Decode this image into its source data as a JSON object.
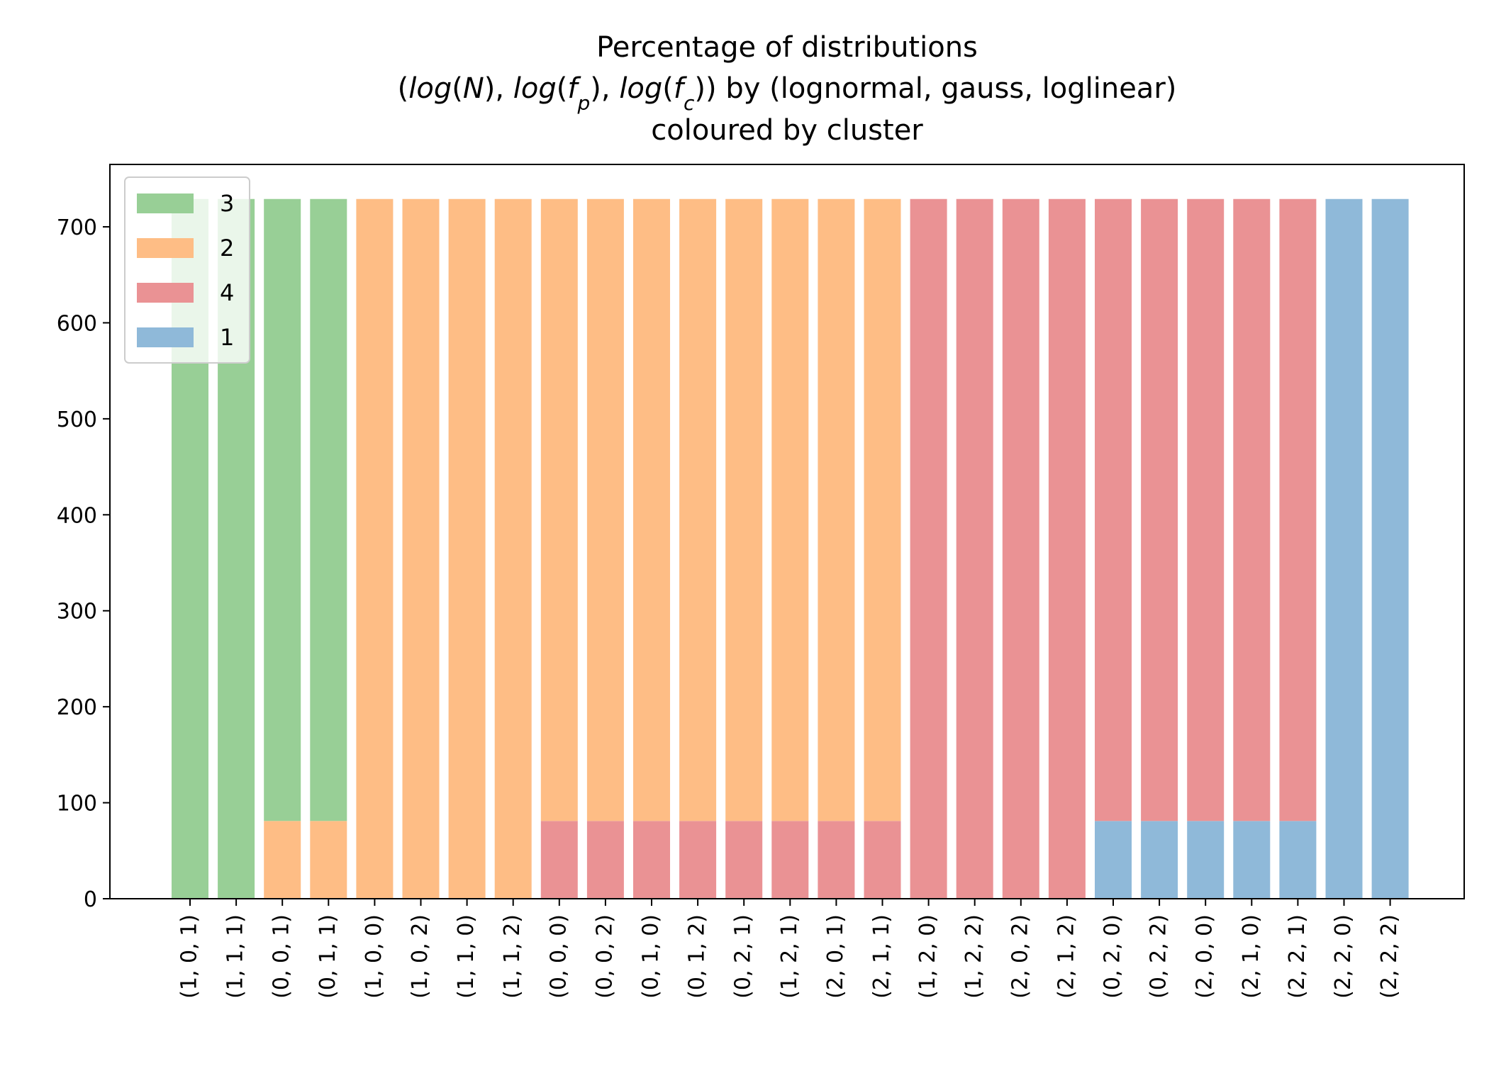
{
  "chart_data": {
    "type": "bar",
    "stacked": true,
    "title": [
      "Percentage of distributions",
      "(log(N), log(f_p), log(f_c)) by (lognormal, gauss, loglinear)",
      "coloured by cluster"
    ],
    "xlabel": "",
    "ylabel": "",
    "ylim": [
      0,
      765
    ],
    "yticks": [
      0,
      100,
      200,
      300,
      400,
      500,
      600,
      700
    ],
    "grid": false,
    "legend_placement": "top-left",
    "categories": [
      "(1, 0, 1)",
      "(1, 1, 1)",
      "(0, 0, 1)",
      "(0, 1, 1)",
      "(1, 0, 0)",
      "(1, 0, 2)",
      "(1, 1, 0)",
      "(1, 1, 2)",
      "(0, 0, 0)",
      "(0, 0, 2)",
      "(0, 1, 0)",
      "(0, 1, 2)",
      "(0, 2, 1)",
      "(1, 2, 1)",
      "(2, 0, 1)",
      "(2, 1, 1)",
      "(1, 2, 0)",
      "(1, 2, 2)",
      "(2, 0, 2)",
      "(2, 1, 2)",
      "(0, 2, 0)",
      "(0, 2, 2)",
      "(2, 0, 0)",
      "(2, 1, 0)",
      "(2, 2, 1)",
      "(2, 2, 0)",
      "(2, 2, 2)"
    ],
    "series": [
      {
        "name": "1",
        "color": "#8fb9d9",
        "values": [
          0,
          0,
          0,
          0,
          0,
          0,
          0,
          0,
          0,
          0,
          0,
          0,
          0,
          0,
          0,
          0,
          0,
          0,
          0,
          0,
          81,
          81,
          81,
          81,
          81,
          729,
          729
        ]
      },
      {
        "name": "4",
        "color": "#ea9294",
        "values": [
          0,
          0,
          0,
          0,
          0,
          0,
          0,
          0,
          81,
          81,
          81,
          81,
          81,
          81,
          81,
          81,
          729,
          729,
          729,
          729,
          648,
          648,
          648,
          648,
          648,
          0,
          0
        ]
      },
      {
        "name": "2",
        "color": "#febd85",
        "values": [
          0,
          0,
          81,
          81,
          729,
          729,
          729,
          729,
          648,
          648,
          648,
          648,
          648,
          648,
          648,
          648,
          0,
          0,
          0,
          0,
          0,
          0,
          0,
          0,
          0,
          0,
          0
        ]
      },
      {
        "name": "3",
        "color": "#98cf96",
        "values": [
          729,
          729,
          648,
          648,
          0,
          0,
          0,
          0,
          0,
          0,
          0,
          0,
          0,
          0,
          0,
          0,
          0,
          0,
          0,
          0,
          0,
          0,
          0,
          0,
          0,
          0,
          0
        ]
      }
    ],
    "legend_order": [
      "3",
      "2",
      "4",
      "1"
    ]
  }
}
